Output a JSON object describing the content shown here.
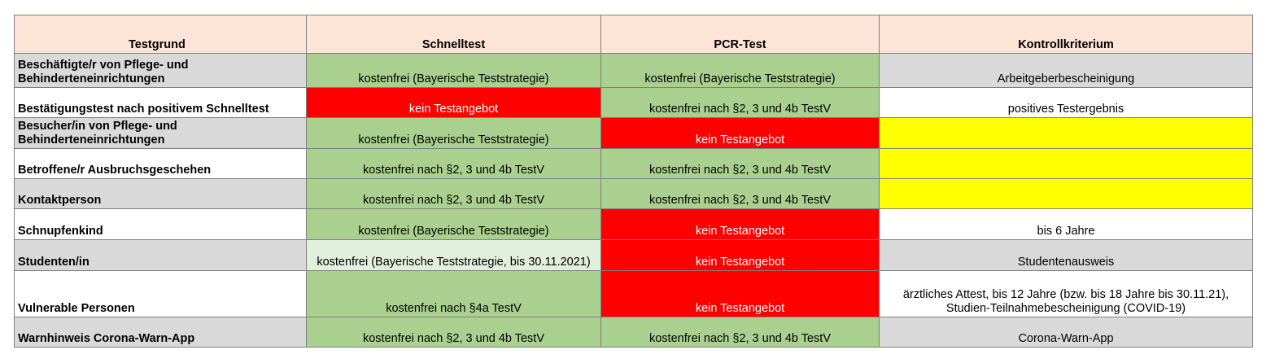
{
  "table": {
    "headers": [
      "Testgrund",
      "Schnelltest",
      "PCR-Test",
      "Kontrollkriterium"
    ],
    "colors": {
      "header": "#fce4d6",
      "green": "#a9d08e",
      "light_green": "#e2efda",
      "red": "#ff0000",
      "yellow": "#ffff00",
      "grey": "#d9d9d9",
      "white": "#ffffff"
    },
    "rows": [
      {
        "testgrund": "Beschäftigte/r von Pflege- und Behinderteneinrichtungen",
        "schnelltest": "kostenfrei (Bayerische Teststrategie)",
        "schnelltest_status": "green",
        "pcr": "kostenfrei (Bayerische Teststrategie)",
        "pcr_status": "green",
        "kontrolle": "Arbeitgeberbescheinigung",
        "kontrolle_status": "grey",
        "label_status": "grey"
      },
      {
        "testgrund": "Bestätigungstest nach positivem Schnelltest",
        "schnelltest": "kein Testangebot",
        "schnelltest_status": "red",
        "pcr": "kostenfrei nach §2, 3 und 4b TestV",
        "pcr_status": "green",
        "kontrolle": "positives Testergebnis",
        "kontrolle_status": "white",
        "label_status": "white"
      },
      {
        "testgrund": "Besucher/in von Pflege- und Behinderteneinrichtungen",
        "schnelltest": "kostenfrei (Bayerische Teststrategie)",
        "schnelltest_status": "green",
        "pcr": "kein Testangebot",
        "pcr_status": "red",
        "kontrolle": "",
        "kontrolle_status": "yellow",
        "label_status": "grey"
      },
      {
        "testgrund": "Betroffene/r Ausbruchsgeschehen",
        "schnelltest": "kostenfrei nach §2, 3 und 4b TestV",
        "schnelltest_status": "green",
        "pcr": "kostenfrei nach §2, 3 und 4b TestV",
        "pcr_status": "green",
        "kontrolle": "",
        "kontrolle_status": "yellow",
        "label_status": "white"
      },
      {
        "testgrund": "Kontaktperson",
        "schnelltest": "kostenfrei nach §2, 3 und 4b TestV",
        "schnelltest_status": "green",
        "pcr": "kostenfrei nach §2, 3 und 4b TestV",
        "pcr_status": "green",
        "kontrolle": "",
        "kontrolle_status": "yellow",
        "label_status": "grey"
      },
      {
        "testgrund": "Schnupfenkind",
        "schnelltest": "kostenfrei (Bayerische Teststrategie)",
        "schnelltest_status": "green",
        "pcr": "kein Testangebot",
        "pcr_status": "red",
        "kontrolle": "bis 6 Jahre",
        "kontrolle_status": "white",
        "label_status": "white"
      },
      {
        "testgrund": "Studenten/in",
        "schnelltest": "kostenfrei (Bayerische Teststrategie, bis 30.11.2021)",
        "schnelltest_status": "lightgreen",
        "pcr": "kein Testangebot",
        "pcr_status": "red",
        "kontrolle": "Studentenausweis",
        "kontrolle_status": "grey",
        "label_status": "grey"
      },
      {
        "testgrund": "Vulnerable Personen",
        "schnelltest": "kostenfrei nach §4a TestV",
        "schnelltest_status": "green",
        "pcr": "kein Testangebot",
        "pcr_status": "red",
        "kontrolle": "ärztliches Attest, bis 12 Jahre (bzw. bis 18 Jahre bis 30.11.21), Studien-Teilnahmebescheinigung (COVID-19)",
        "kontrolle_status": "white",
        "label_status": "white"
      },
      {
        "testgrund": "Warnhinweis Corona-Warn-App",
        "schnelltest": "kostenfrei nach §2, 3 und 4b TestV",
        "schnelltest_status": "green",
        "pcr": "kostenfrei nach §2, 3 und 4b TestV",
        "pcr_status": "green",
        "kontrolle": "Corona-Warn-App",
        "kontrolle_status": "grey",
        "label_status": "grey"
      }
    ]
  }
}
